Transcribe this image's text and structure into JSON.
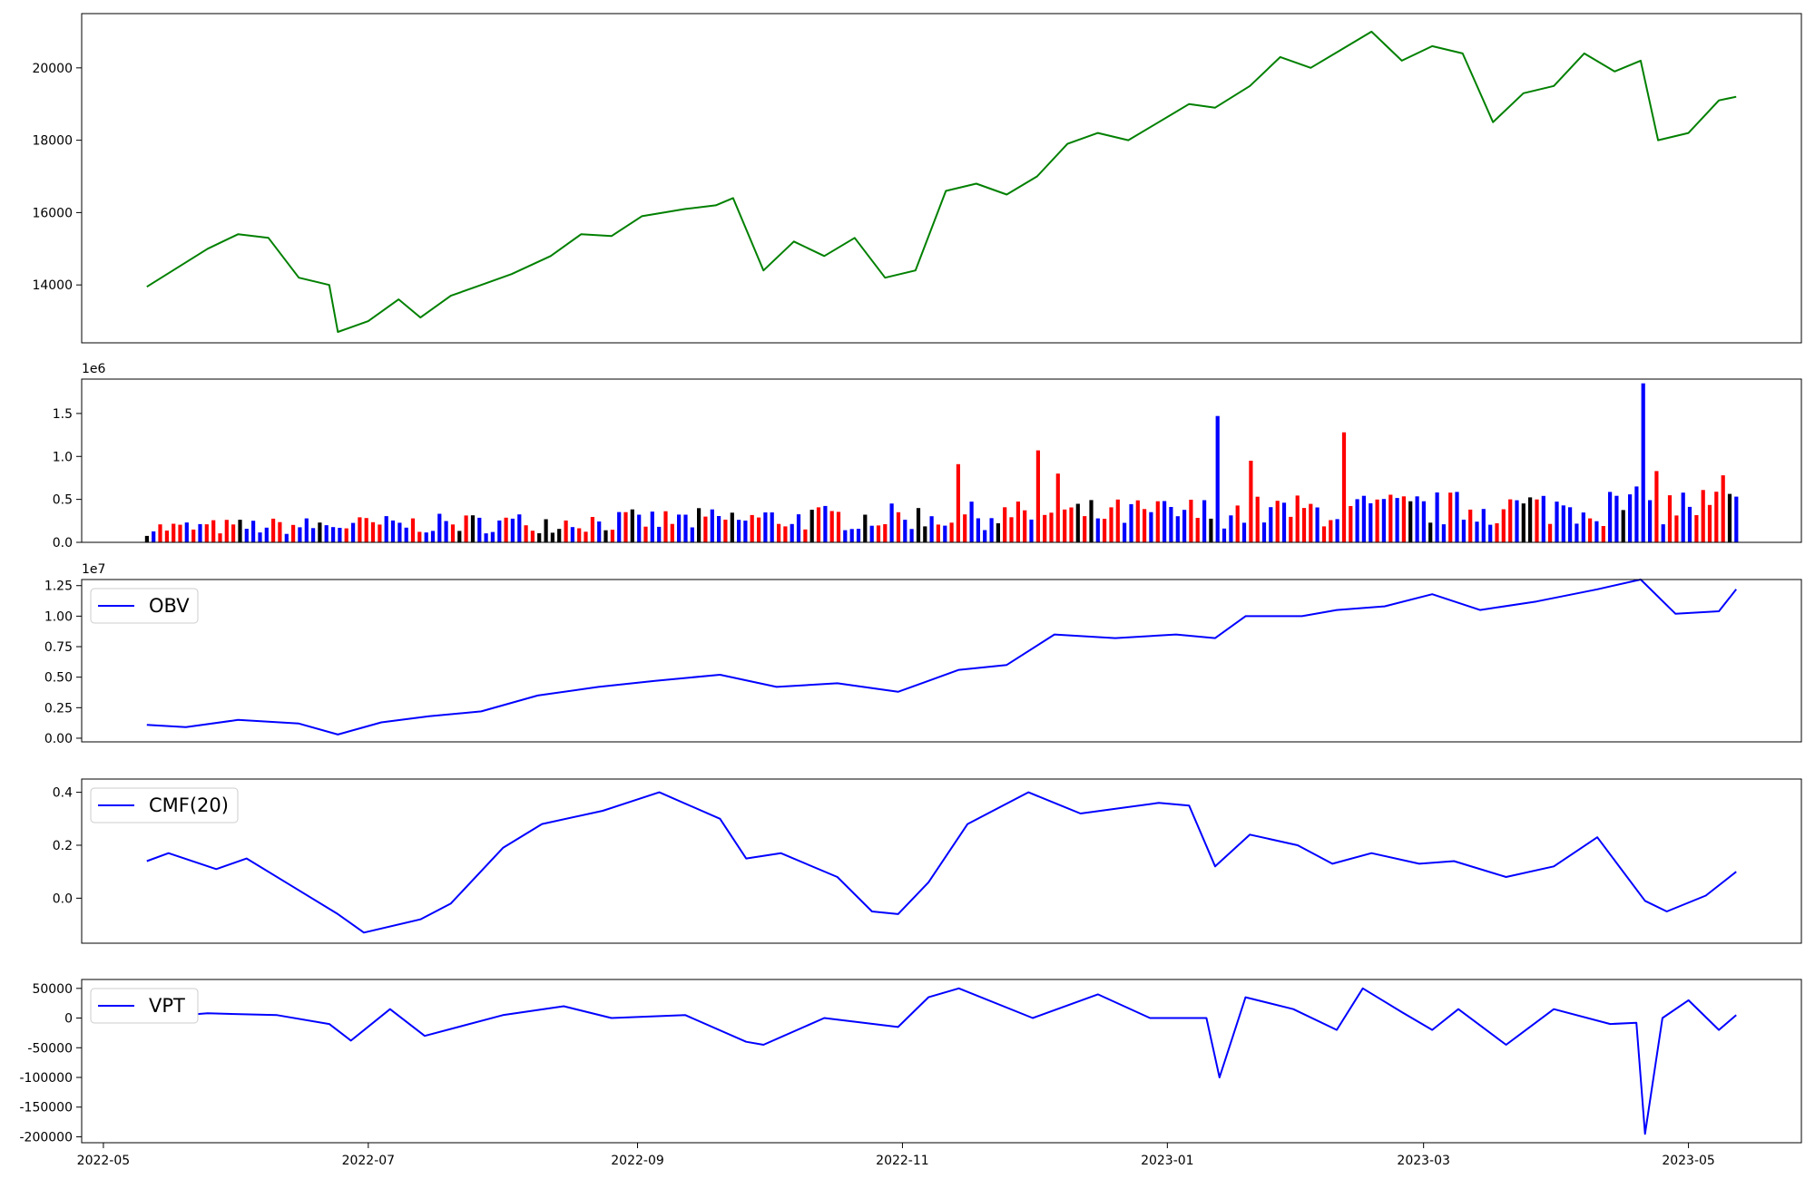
{
  "x_axis": {
    "ticks": [
      "2022-05",
      "2022-07",
      "2022-09",
      "2022-11",
      "2023-01",
      "2023-03",
      "2023-05"
    ]
  },
  "chart_data": [
    {
      "type": "line",
      "panel": "price",
      "color": "#008000",
      "ylim": [
        12400,
        21500
      ],
      "yticks": [
        14000,
        16000,
        18000,
        20000
      ],
      "series": [
        {
          "x": [
            "2022-05-11",
            "2022-05-25",
            "2022-06-01",
            "2022-06-08",
            "2022-06-15",
            "2022-06-22",
            "2022-06-24",
            "2022-07-01",
            "2022-07-08",
            "2022-07-13",
            "2022-07-20",
            "2022-07-27",
            "2022-08-03",
            "2022-08-12",
            "2022-08-19",
            "2022-08-26",
            "2022-09-02",
            "2022-09-12",
            "2022-09-19",
            "2022-09-23",
            "2022-09-30",
            "2022-10-07",
            "2022-10-14",
            "2022-10-21",
            "2022-10-28",
            "2022-11-04",
            "2022-11-11",
            "2022-11-18",
            "2022-11-25",
            "2022-12-02",
            "2022-12-09",
            "2022-12-16",
            "2022-12-23",
            "2022-12-30",
            "2023-01-06",
            "2023-01-12",
            "2023-01-20",
            "2023-01-27",
            "2023-02-03",
            "2023-02-10",
            "2023-02-17",
            "2023-02-24",
            "2023-03-03",
            "2023-03-10",
            "2023-03-17",
            "2023-03-24",
            "2023-03-31",
            "2023-04-07",
            "2023-04-14",
            "2023-04-20",
            "2023-04-24",
            "2023-05-01",
            "2023-05-08",
            "2023-05-12"
          ],
          "y": [
            13950,
            15000,
            15400,
            15300,
            14200,
            14000,
            12700,
            13000,
            13600,
            13100,
            13700,
            14000,
            14300,
            14800,
            15400,
            15350,
            15900,
            16100,
            16200,
            16400,
            14400,
            15200,
            14800,
            15300,
            14200,
            14400,
            16600,
            16800,
            16500,
            17000,
            17900,
            18200,
            18000,
            18500,
            19000,
            18900,
            19500,
            20300,
            20000,
            20500,
            21000,
            20200,
            20600,
            20400,
            18500,
            19300,
            19500,
            20400,
            19900,
            20200,
            18000,
            18200,
            19100,
            19200
          ]
        }
      ]
    },
    {
      "type": "bar",
      "panel": "volume",
      "scale_label": "1e6",
      "ylim": [
        0,
        1900000
      ],
      "yticks": [
        0,
        0.5,
        1.0,
        1.5
      ],
      "colors": {
        "up": "#0000ff",
        "down": "#ff0000",
        "flat": "#000000"
      },
      "start": "2022-05-11",
      "end": "2023-05-12",
      "bar_count": 240,
      "spikes": [
        {
          "x": "2023-04-21",
          "value": 1850000,
          "color": "#0000ff"
        },
        {
          "x": "2023-01-13",
          "value": 1470000,
          "color": "#0000ff"
        },
        {
          "x": "2023-02-10",
          "value": 1280000,
          "color": "#ff0000"
        },
        {
          "x": "2022-12-02",
          "value": 1070000,
          "color": "#ff0000"
        },
        {
          "x": "2023-01-20",
          "value": 950000,
          "color": "#ff0000"
        },
        {
          "x": "2022-11-14",
          "value": 910000,
          "color": "#ff0000"
        },
        {
          "x": "2023-04-24",
          "value": 830000,
          "color": "#ff0000"
        },
        {
          "x": "2022-12-07",
          "value": 800000,
          "color": "#ff0000"
        },
        {
          "x": "2023-05-09",
          "value": 780000,
          "color": "#ff0000"
        }
      ]
    },
    {
      "type": "line",
      "panel": "obv",
      "legend": "OBV",
      "color": "#0000ff",
      "scale_label": "1e7",
      "ylim": [
        -0.03,
        1.3
      ],
      "yticks": [
        0.0,
        0.25,
        0.5,
        0.75,
        1.0,
        1.25
      ],
      "series": [
        {
          "name": "OBV",
          "x": [
            "2022-05-11",
            "2022-05-20",
            "2022-06-01",
            "2022-06-15",
            "2022-06-24",
            "2022-07-04",
            "2022-07-15",
            "2022-07-27",
            "2022-08-09",
            "2022-08-23",
            "2022-09-05",
            "2022-09-20",
            "2022-10-03",
            "2022-10-17",
            "2022-10-31",
            "2022-11-14",
            "2022-11-25",
            "2022-12-06",
            "2022-12-20",
            "2023-01-03",
            "2023-01-12",
            "2023-01-19",
            "2023-02-01",
            "2023-02-09",
            "2023-02-20",
            "2023-03-03",
            "2023-03-14",
            "2023-03-27",
            "2023-04-10",
            "2023-04-20",
            "2023-04-28",
            "2023-05-08",
            "2023-05-12"
          ],
          "y": [
            0.11,
            0.09,
            0.15,
            0.12,
            0.03,
            0.13,
            0.18,
            0.22,
            0.35,
            0.42,
            0.47,
            0.52,
            0.42,
            0.45,
            0.38,
            0.56,
            0.6,
            0.85,
            0.82,
            0.85,
            0.82,
            1.0,
            1.0,
            1.05,
            1.08,
            1.18,
            1.05,
            1.12,
            1.22,
            1.3,
            1.02,
            1.04,
            1.22
          ]
        }
      ]
    },
    {
      "type": "line",
      "panel": "cmf",
      "legend": "CMF(20)",
      "color": "#0000ff",
      "ylim": [
        -0.17,
        0.45
      ],
      "yticks": [
        0.0,
        0.2,
        0.4
      ],
      "series": [
        {
          "name": "CMF(20)",
          "x": [
            "2022-05-11",
            "2022-05-16",
            "2022-05-27",
            "2022-06-03",
            "2022-06-13",
            "2022-06-24",
            "2022-06-30",
            "2022-07-13",
            "2022-07-20",
            "2022-08-01",
            "2022-08-10",
            "2022-08-24",
            "2022-09-06",
            "2022-09-20",
            "2022-09-26",
            "2022-10-04",
            "2022-10-17",
            "2022-10-25",
            "2022-10-31",
            "2022-11-07",
            "2022-11-16",
            "2022-11-30",
            "2022-12-12",
            "2022-12-30",
            "2023-01-06",
            "2023-01-12",
            "2023-01-20",
            "2023-01-31",
            "2023-02-08",
            "2023-02-17",
            "2023-02-28",
            "2023-03-08",
            "2023-03-20",
            "2023-03-31",
            "2023-04-10",
            "2023-04-21",
            "2023-04-26",
            "2023-05-05",
            "2023-05-12"
          ],
          "y": [
            0.14,
            0.17,
            0.11,
            0.15,
            0.05,
            -0.06,
            -0.13,
            -0.08,
            -0.02,
            0.19,
            0.28,
            0.33,
            0.4,
            0.3,
            0.15,
            0.17,
            0.08,
            -0.05,
            -0.06,
            0.06,
            0.28,
            0.4,
            0.32,
            0.36,
            0.35,
            0.12,
            0.24,
            0.2,
            0.13,
            0.17,
            0.13,
            0.14,
            0.08,
            0.12,
            0.23,
            -0.01,
            -0.05,
            0.01,
            0.1
          ]
        }
      ]
    },
    {
      "type": "line",
      "panel": "vpt",
      "legend": "VPT",
      "color": "#0000ff",
      "ylim": [
        -210000,
        65000
      ],
      "yticks": [
        -200000,
        -150000,
        -100000,
        -50000,
        0,
        50000
      ],
      "series": [
        {
          "name": "VPT",
          "x": [
            "2022-05-11",
            "2022-05-25",
            "2022-06-10",
            "2022-06-22",
            "2022-06-27",
            "2022-07-06",
            "2022-07-14",
            "2022-08-01",
            "2022-08-15",
            "2022-08-26",
            "2022-09-12",
            "2022-09-26",
            "2022-09-30",
            "2022-10-14",
            "2022-10-31",
            "2022-11-07",
            "2022-11-14",
            "2022-12-01",
            "2022-12-16",
            "2022-12-28",
            "2023-01-10",
            "2023-01-13",
            "2023-01-19",
            "2023-01-30",
            "2023-02-09",
            "2023-02-15",
            "2023-02-24",
            "2023-03-03",
            "2023-03-09",
            "2023-03-20",
            "2023-03-31",
            "2023-04-13",
            "2023-04-19",
            "2023-04-21",
            "2023-04-25",
            "2023-05-01",
            "2023-05-08",
            "2023-05-12"
          ],
          "y": [
            0,
            8000,
            5000,
            -10000,
            -38000,
            15000,
            -30000,
            5000,
            20000,
            0,
            5000,
            -40000,
            -45000,
            0,
            -15000,
            35000,
            50000,
            0,
            40000,
            0,
            0,
            -100000,
            35000,
            15000,
            -20000,
            50000,
            10000,
            -20000,
            15000,
            -45000,
            15000,
            -10000,
            -8000,
            -195000,
            0,
            30000,
            -20000,
            5000
          ]
        }
      ]
    }
  ]
}
